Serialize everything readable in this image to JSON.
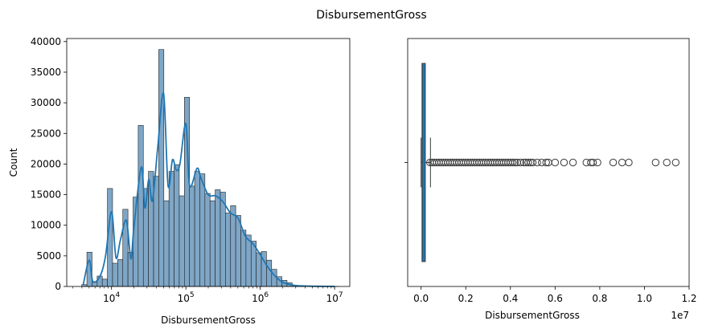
{
  "title": "DisbursementGross",
  "chart_data": [
    {
      "type": "bar",
      "subtype": "histogram-with-kde",
      "xlabel": "DisbursementGross",
      "ylabel": "Count",
      "xscale": "log",
      "xlim": [
        2500,
        16000000
      ],
      "ylim": [
        0,
        40500
      ],
      "bar_color": "#7fa6c6",
      "kde_color": "#1f77b4",
      "yticks": [
        0,
        5000,
        10000,
        15000,
        20000,
        25000,
        30000,
        35000,
        40000
      ],
      "ytick_labels": [
        "0",
        "5000",
        "10000",
        "15000",
        "20000",
        "25000",
        "30000",
        "35000",
        "40000"
      ],
      "xticks": [
        {
          "value": 10000,
          "base": "10",
          "exp": "4"
        },
        {
          "value": 100000,
          "base": "10",
          "exp": "5"
        },
        {
          "value": 1000000,
          "base": "10",
          "exp": "6"
        },
        {
          "value": 10000000,
          "base": "10",
          "exp": "7"
        }
      ],
      "bins_log10_range": [
        3.6,
        7.05
      ],
      "counts": [
        300,
        5600,
        800,
        1700,
        1200,
        16000,
        3800,
        4400,
        12600,
        5600,
        14600,
        26300,
        16000,
        18800,
        18000,
        38700,
        14000,
        18800,
        19900,
        14800,
        30900,
        16400,
        18800,
        18400,
        15200,
        14000,
        15800,
        15400,
        12000,
        13200,
        11600,
        9200,
        8400,
        7400,
        5500,
        5700,
        4300,
        2800,
        1600,
        1000,
        600,
        200,
        100,
        80,
        60,
        40,
        30,
        20,
        10,
        5
      ],
      "kde": [
        [
          3.62,
          300
        ],
        [
          3.7,
          4300
        ],
        [
          3.75,
          800
        ],
        [
          3.85,
          1800
        ],
        [
          3.92,
          5000
        ],
        [
          4.0,
          12200
        ],
        [
          4.06,
          4700
        ],
        [
          4.12,
          7600
        ],
        [
          4.2,
          10800
        ],
        [
          4.26,
          4500
        ],
        [
          4.3,
          9500
        ],
        [
          4.4,
          19500
        ],
        [
          4.45,
          12800
        ],
        [
          4.5,
          17500
        ],
        [
          4.55,
          14000
        ],
        [
          4.62,
          22500
        ],
        [
          4.7,
          31500
        ],
        [
          4.76,
          16500
        ],
        [
          4.82,
          20700
        ],
        [
          4.87,
          19000
        ],
        [
          4.92,
          20000
        ],
        [
          5.0,
          26600
        ],
        [
          5.05,
          16500
        ],
        [
          5.15,
          19300
        ],
        [
          5.2,
          17800
        ],
        [
          5.3,
          15000
        ],
        [
          5.4,
          14800
        ],
        [
          5.5,
          13800
        ],
        [
          5.6,
          12000
        ],
        [
          5.7,
          11200
        ],
        [
          5.8,
          8200
        ],
        [
          5.9,
          7000
        ],
        [
          6.0,
          5200
        ],
        [
          6.1,
          3200
        ],
        [
          6.2,
          1700
        ],
        [
          6.3,
          700
        ],
        [
          6.45,
          200
        ],
        [
          6.65,
          60
        ],
        [
          7.0,
          10
        ]
      ]
    },
    {
      "type": "box",
      "xlabel": "DisbursementGross",
      "xlim": [
        -0.06,
        1.2
      ],
      "x_multiplier": "1e7",
      "xticks": [
        0.0,
        0.2,
        0.4,
        0.6,
        0.8,
        1.0,
        1.2
      ],
      "xtick_labels": [
        "0.0",
        "0.2",
        "0.4",
        "0.6",
        "0.8",
        "1.0",
        "1.2"
      ],
      "box_color": "#1f77b4",
      "q1": 0.0042,
      "median": 0.005,
      "q3": 0.019,
      "whisker_low": 0.0,
      "whisker_high": 0.042,
      "outliers": [
        0.04,
        0.05,
        0.06,
        0.07,
        0.08,
        0.09,
        0.1,
        0.11,
        0.12,
        0.13,
        0.14,
        0.15,
        0.16,
        0.17,
        0.18,
        0.19,
        0.2,
        0.21,
        0.22,
        0.23,
        0.24,
        0.25,
        0.26,
        0.27,
        0.28,
        0.29,
        0.3,
        0.31,
        0.32,
        0.33,
        0.34,
        0.35,
        0.36,
        0.37,
        0.38,
        0.39,
        0.4,
        0.41,
        0.42,
        0.43,
        0.445,
        0.46,
        0.47,
        0.48,
        0.49,
        0.5,
        0.52,
        0.54,
        0.56,
        0.57,
        0.6,
        0.64,
        0.68,
        0.74,
        0.76,
        0.77,
        0.79,
        0.86,
        0.9,
        0.93,
        1.05,
        1.1,
        1.14
      ]
    }
  ]
}
